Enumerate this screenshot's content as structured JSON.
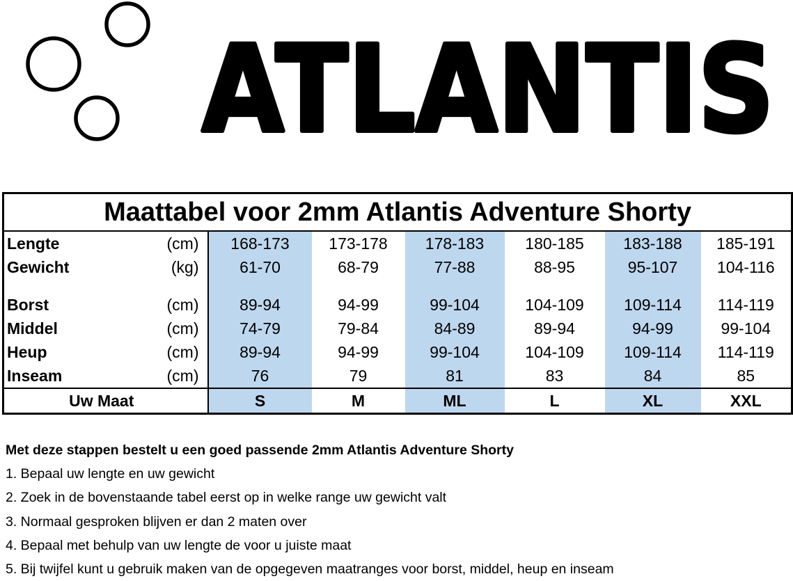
{
  "logo": {
    "text": "ATLANTIS"
  },
  "table": {
    "title": "Maattabel voor 2mm Atlantis Adventure Shorty",
    "rows": [
      {
        "label": "Lengte",
        "unit": "(cm)",
        "values": [
          "168-173",
          "173-178",
          "178-183",
          "180-185",
          "183-188",
          "185-191"
        ]
      },
      {
        "label": "Gewicht",
        "unit": "(kg)",
        "values": [
          "61-70",
          "68-79",
          "77-88",
          "88-95",
          "95-107",
          "104-116"
        ]
      },
      {
        "label": "Borst",
        "unit": "(cm)",
        "values": [
          "89-94",
          "94-99",
          "99-104",
          "104-109",
          "109-114",
          "114-119"
        ]
      },
      {
        "label": "Middel",
        "unit": "(cm)",
        "values": [
          "74-79",
          "79-84",
          "84-89",
          "89-94",
          "94-99",
          "99-104"
        ]
      },
      {
        "label": "Heup",
        "unit": "(cm)",
        "values": [
          "89-94",
          "94-99",
          "99-104",
          "104-109",
          "109-114",
          "114-119"
        ]
      },
      {
        "label": "Inseam",
        "unit": "(cm)",
        "values": [
          "76",
          "79",
          "81",
          "83",
          "84",
          "85"
        ]
      }
    ],
    "size_label": "Uw Maat",
    "sizes": [
      "S",
      "M",
      "ML",
      "L",
      "XL",
      "XXL"
    ],
    "highlight_color": "#bdd7ee"
  },
  "steps": {
    "heading": "Met deze stappen bestelt u een goed passende 2mm Atlantis Adventure Shorty",
    "items": [
      "1. Bepaal uw lengte en uw gewicht",
      "2. Zoek in de bovenstaande tabel eerst op in welke range uw gewicht valt",
      "3. Normaal gesproken blijven er dan 2 maten over",
      "4. Bepaal met behulp van uw lengte de voor u juiste maat",
      "5. Bij twijfel kunt u gebruik maken van de opgegeven maatranges voor borst, middel, heup en inseam"
    ]
  }
}
